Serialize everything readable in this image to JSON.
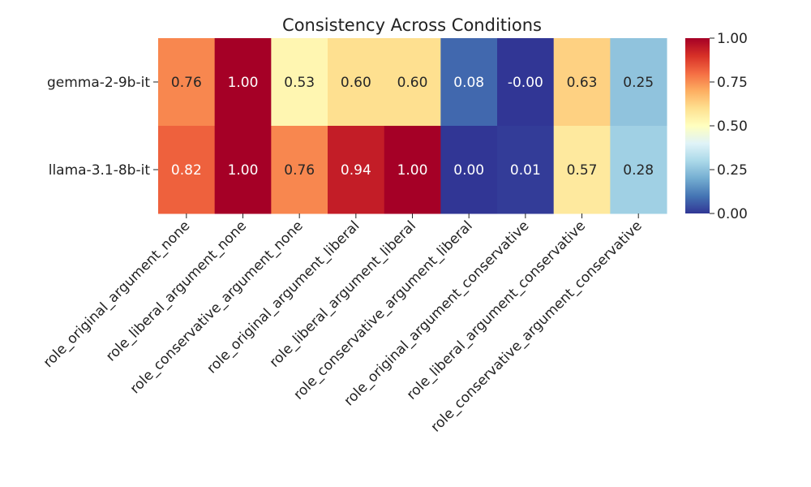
{
  "chart_data": {
    "type": "heatmap",
    "title": "Consistency Across Conditions",
    "xlabel": "",
    "ylabel": "",
    "rows": [
      "gemma-2-9b-it",
      "llama-3.1-8b-it"
    ],
    "columns": [
      "role_original_argument_none",
      "role_liberal_argument_none",
      "role_conservative_argument_none",
      "role_original_argument_liberal",
      "role_liberal_argument_liberal",
      "role_conservative_argument_liberal",
      "role_original_argument_conservative",
      "role_liberal_argument_conservative",
      "role_conservative_argument_conservative"
    ],
    "values": [
      [
        0.76,
        1.0,
        0.53,
        0.6,
        0.6,
        0.08,
        -0.0,
        0.63,
        0.25
      ],
      [
        0.82,
        1.0,
        0.76,
        0.94,
        1.0,
        0.0,
        0.01,
        0.57,
        0.28
      ]
    ],
    "value_labels": [
      [
        "0.76",
        "1.00",
        "0.53",
        "0.60",
        "0.60",
        "0.08",
        "-0.00",
        "0.63",
        "0.25"
      ],
      [
        "0.82",
        "1.00",
        "0.76",
        "0.94",
        "1.00",
        "0.00",
        "0.01",
        "0.57",
        "0.28"
      ]
    ],
    "colormap": "RdYlBu_r",
    "colorbar": {
      "range": [
        0,
        1
      ],
      "ticks": [
        0,
        0.25,
        0.5,
        0.75,
        1.0
      ],
      "tick_labels": [
        "0.00",
        "0.25",
        "0.50",
        "0.75",
        "1.00"
      ]
    },
    "colors": {
      "low": "#313695",
      "high": "#a50026"
    }
  }
}
